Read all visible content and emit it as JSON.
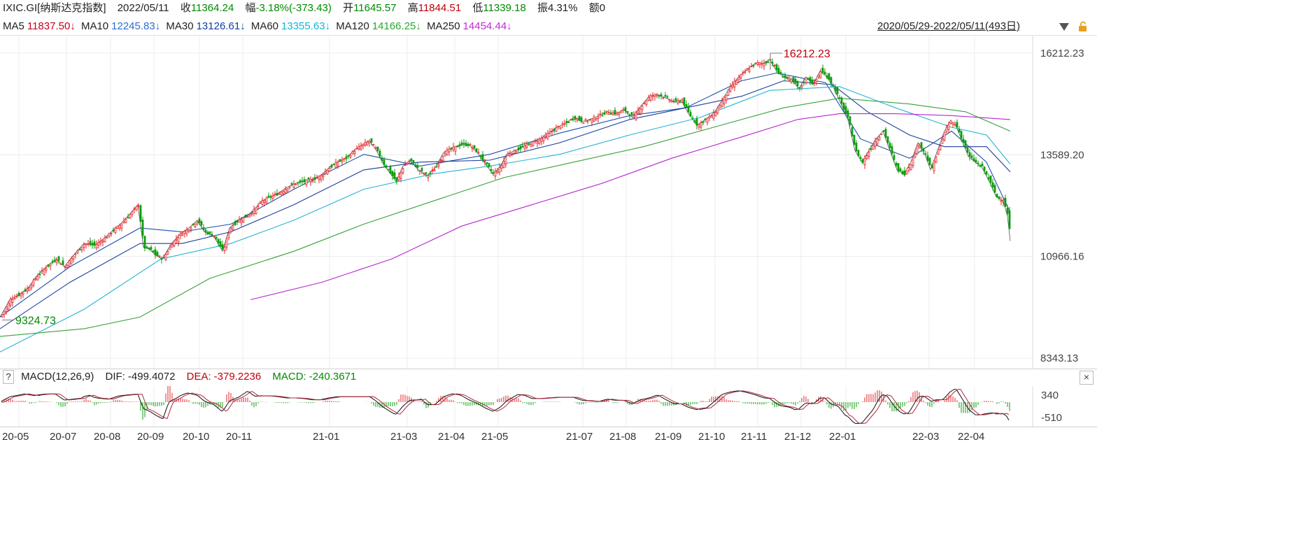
{
  "header": {
    "symbol": "IXIC.GI[纳斯达克指数]",
    "date": "2022/05/11",
    "close_label": "收",
    "close": "11364.24",
    "change_label": "幅",
    "change": "-3.18%(-373.43)",
    "open_label": "开",
    "open": "11645.57",
    "high_label": "高",
    "high": "11844.51",
    "low_label": "低",
    "low": "11339.18",
    "amp_label": "振",
    "amp": "4.31%",
    "amount_label": "额",
    "amount": "0"
  },
  "ma": {
    "ma5_label": "MA5",
    "ma5": "11837.50↓",
    "ma10_label": "MA10",
    "ma10": "12245.83↓",
    "ma30_label": "MA30",
    "ma30": "13126.61↓",
    "ma60_label": "MA60",
    "ma60": "13355.63↓",
    "ma120_label": "MA120",
    "ma120": "14166.25↓",
    "ma250_label": "MA250",
    "ma250": "14454.44↓"
  },
  "range": "2020/05/29-2022/05/11(493日)",
  "macd": {
    "help": "?",
    "title": "MACD(12,26,9)",
    "dif_label": "DIF:",
    "dif": "-499.4072",
    "dea_label": "DEA:",
    "dea": "-379.2236",
    "macd_label": "MACD:",
    "macd": "-240.3671",
    "close": "×",
    "y_ticks": [
      "340",
      "-510"
    ]
  },
  "colors": {
    "up": "#e5262b",
    "down": "#0c9c0c",
    "ma5": "#555555",
    "ma10": "#1c50a8",
    "ma30": "#1c3d9c",
    "ma60": "#27b3d6",
    "ma120": "#37a23a",
    "ma250": "#b826d0",
    "dif": "#111111",
    "dea": "#b8253d"
  },
  "chart_data": {
    "type": "candlestick",
    "y_ticks": [
      "16212.23",
      "13589.20",
      "10966.16",
      "8343.13"
    ],
    "ylim": [
      8343.13,
      16212.23
    ],
    "x_ticks": [
      "20-05",
      "20-07",
      "20-08",
      "20-09",
      "20-10",
      "20-11",
      "21-01",
      "21-03",
      "21-04",
      "21-05",
      "21-07",
      "21-08",
      "21-09",
      "21-10",
      "21-11",
      "21-12",
      "22-01",
      "22-03",
      "22-04"
    ],
    "annotations": {
      "max": "16212.23",
      "min": "9324.73"
    },
    "close_path": [
      [
        0,
        9400
      ],
      [
        14,
        9850
      ],
      [
        24,
        9950
      ],
      [
        40,
        10150
      ],
      [
        52,
        10450
      ],
      [
        66,
        10700
      ],
      [
        80,
        10900
      ],
      [
        92,
        10700
      ],
      [
        105,
        11000
      ],
      [
        120,
        11300
      ],
      [
        135,
        11250
      ],
      [
        150,
        11450
      ],
      [
        162,
        11650
      ],
      [
        172,
        11800
      ],
      [
        185,
        12050
      ],
      [
        197,
        12300
      ],
      [
        205,
        11200
      ],
      [
        214,
        11150
      ],
      [
        222,
        11000
      ],
      [
        232,
        10900
      ],
      [
        245,
        11300
      ],
      [
        258,
        11550
      ],
      [
        270,
        11700
      ],
      [
        282,
        11900
      ],
      [
        292,
        11600
      ],
      [
        305,
        11500
      ],
      [
        318,
        11100
      ],
      [
        328,
        11700
      ],
      [
        340,
        11900
      ],
      [
        352,
        12000
      ],
      [
        362,
        12150
      ],
      [
        374,
        12400
      ],
      [
        386,
        12500
      ],
      [
        398,
        12600
      ],
      [
        410,
        12750
      ],
      [
        422,
        12850
      ],
      [
        434,
        12900
      ],
      [
        446,
        12950
      ],
      [
        458,
        13050
      ],
      [
        470,
        13250
      ],
      [
        482,
        13400
      ],
      [
        494,
        13500
      ],
      [
        506,
        13700
      ],
      [
        518,
        13850
      ],
      [
        528,
        13950
      ],
      [
        538,
        13700
      ],
      [
        548,
        13350
      ],
      [
        558,
        13100
      ],
      [
        566,
        12900
      ],
      [
        576,
        13300
      ],
      [
        586,
        13450
      ],
      [
        598,
        13200
      ],
      [
        610,
        13050
      ],
      [
        622,
        13250
      ],
      [
        634,
        13650
      ],
      [
        646,
        13750
      ],
      [
        658,
        13850
      ],
      [
        670,
        13850
      ],
      [
        682,
        13650
      ],
      [
        694,
        13350
      ],
      [
        704,
        13100
      ],
      [
        714,
        13250
      ],
      [
        724,
        13600
      ],
      [
        736,
        13700
      ],
      [
        748,
        13800
      ],
      [
        760,
        13900
      ],
      [
        772,
        14000
      ],
      [
        784,
        14150
      ],
      [
        796,
        14300
      ],
      [
        808,
        14400
      ],
      [
        820,
        14550
      ],
      [
        832,
        14450
      ],
      [
        844,
        14500
      ],
      [
        856,
        14600
      ],
      [
        868,
        14700
      ],
      [
        880,
        14650
      ],
      [
        892,
        14750
      ],
      [
        904,
        14550
      ],
      [
        916,
        14850
      ],
      [
        928,
        15100
      ],
      [
        940,
        15150
      ],
      [
        952,
        15050
      ],
      [
        964,
        14950
      ],
      [
        974,
        15000
      ],
      [
        984,
        14650
      ],
      [
        996,
        14350
      ],
      [
        1008,
        14500
      ],
      [
        1020,
        14650
      ],
      [
        1032,
        15000
      ],
      [
        1044,
        15350
      ],
      [
        1056,
        15600
      ],
      [
        1068,
        15800
      ],
      [
        1080,
        15950
      ],
      [
        1092,
        15950
      ],
      [
        1100,
        16050
      ],
      [
        1110,
        15750
      ],
      [
        1120,
        15600
      ],
      [
        1132,
        15500
      ],
      [
        1142,
        15300
      ],
      [
        1152,
        15600
      ],
      [
        1162,
        15400
      ],
      [
        1172,
        15750
      ],
      [
        1182,
        15600
      ],
      [
        1192,
        15300
      ],
      [
        1202,
        14900
      ],
      [
        1212,
        14500
      ],
      [
        1222,
        13700
      ],
      [
        1232,
        13400
      ],
      [
        1242,
        13700
      ],
      [
        1252,
        14000
      ],
      [
        1262,
        14200
      ],
      [
        1272,
        13700
      ],
      [
        1282,
        13200
      ],
      [
        1292,
        13100
      ],
      [
        1302,
        13400
      ],
      [
        1312,
        13900
      ],
      [
        1322,
        13600
      ],
      [
        1330,
        13200
      ],
      [
        1340,
        13700
      ],
      [
        1350,
        14200
      ],
      [
        1358,
        14450
      ],
      [
        1366,
        14350
      ],
      [
        1374,
        14000
      ],
      [
        1384,
        13550
      ],
      [
        1394,
        13400
      ],
      [
        1404,
        13250
      ],
      [
        1414,
        12900
      ],
      [
        1424,
        12500
      ],
      [
        1434,
        12400
      ],
      [
        1440,
        12000
      ],
      [
        1444,
        11364.24
      ]
    ],
    "ma_paths": {
      "ma10": [
        [
          0,
          9400
        ],
        [
          100,
          10700
        ],
        [
          200,
          11700
        ],
        [
          260,
          11600
        ],
        [
          330,
          11800
        ],
        [
          420,
          12700
        ],
        [
          520,
          13600
        ],
        [
          600,
          13300
        ],
        [
          700,
          13600
        ],
        [
          800,
          14150
        ],
        [
          900,
          14600
        ],
        [
          980,
          14800
        ],
        [
          1060,
          15500
        ],
        [
          1110,
          15700
        ],
        [
          1180,
          15450
        ],
        [
          1230,
          14000
        ],
        [
          1300,
          13500
        ],
        [
          1360,
          14200
        ],
        [
          1410,
          13400
        ],
        [
          1444,
          12100
        ]
      ],
      "ma30": [
        [
          0,
          9100
        ],
        [
          100,
          10300
        ],
        [
          200,
          11300
        ],
        [
          260,
          11300
        ],
        [
          330,
          11600
        ],
        [
          420,
          12300
        ],
        [
          520,
          13200
        ],
        [
          600,
          13400
        ],
        [
          700,
          13450
        ],
        [
          800,
          13900
        ],
        [
          900,
          14500
        ],
        [
          980,
          14800
        ],
        [
          1060,
          15100
        ],
        [
          1120,
          15500
        ],
        [
          1190,
          15400
        ],
        [
          1240,
          14700
        ],
        [
          1300,
          14100
        ],
        [
          1350,
          13800
        ],
        [
          1410,
          13800
        ],
        [
          1444,
          13150
        ]
      ],
      "ma60": [
        [
          0,
          8500
        ],
        [
          120,
          9600
        ],
        [
          230,
          10900
        ],
        [
          330,
          11300
        ],
        [
          420,
          11900
        ],
        [
          520,
          12700
        ],
        [
          620,
          13100
        ],
        [
          700,
          13300
        ],
        [
          800,
          13600
        ],
        [
          900,
          14100
        ],
        [
          1000,
          14550
        ],
        [
          1100,
          15250
        ],
        [
          1200,
          15350
        ],
        [
          1280,
          14800
        ],
        [
          1360,
          14300
        ],
        [
          1410,
          14100
        ],
        [
          1444,
          13350
        ]
      ],
      "ma120": [
        [
          0,
          8900
        ],
        [
          120,
          9100
        ],
        [
          200,
          9400
        ],
        [
          300,
          10400
        ],
        [
          420,
          11100
        ],
        [
          520,
          11800
        ],
        [
          620,
          12400
        ],
        [
          720,
          13000
        ],
        [
          820,
          13400
        ],
        [
          920,
          13800
        ],
        [
          1020,
          14300
        ],
        [
          1120,
          14800
        ],
        [
          1200,
          15050
        ],
        [
          1300,
          14900
        ],
        [
          1380,
          14700
        ],
        [
          1444,
          14200
        ]
      ],
      "ma250": [
        [
          358,
          9850
        ],
        [
          460,
          10300
        ],
        [
          560,
          10900
        ],
        [
          660,
          11750
        ],
        [
          760,
          12300
        ],
        [
          860,
          12850
        ],
        [
          960,
          13500
        ],
        [
          1060,
          14050
        ],
        [
          1140,
          14500
        ],
        [
          1200,
          14650
        ],
        [
          1280,
          14650
        ],
        [
          1360,
          14600
        ],
        [
          1444,
          14500
        ]
      ]
    }
  }
}
